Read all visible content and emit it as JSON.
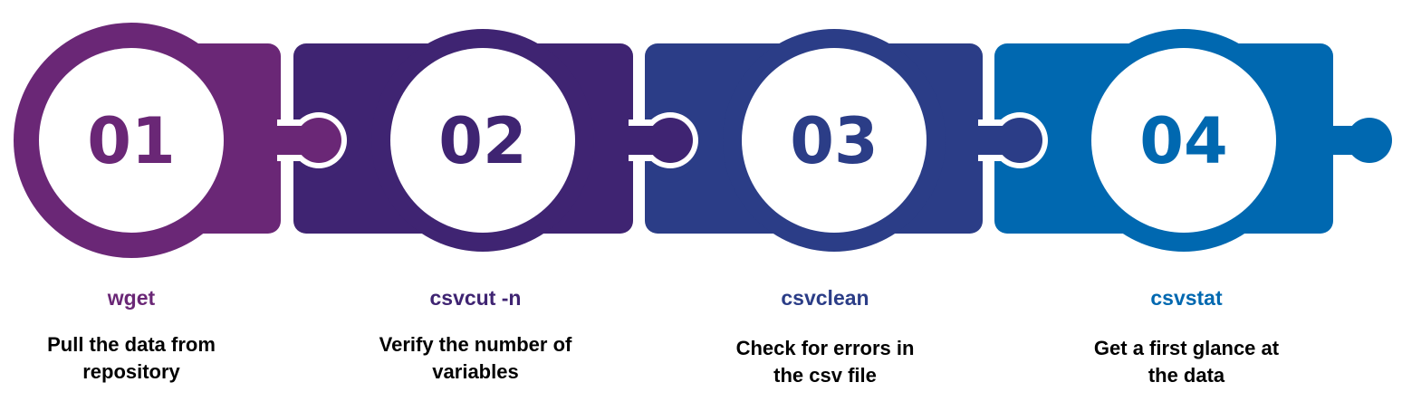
{
  "steps": [
    {
      "number": "01",
      "command": "wget",
      "description_line1": "Pull the data from",
      "description_line2": "repository",
      "color": "#6A2776"
    },
    {
      "number": "02",
      "command": "csvcut -n",
      "description_line1": "Verify the number of",
      "description_line2": "variables",
      "color": "#3F2472"
    },
    {
      "number": "03",
      "command": "csvclean",
      "description_line1": "Check for errors in",
      "description_line2": "the csv file",
      "color": "#2B3D87"
    },
    {
      "number": "04",
      "command": "csvstat",
      "description_line1": "Get a first glance at",
      "description_line2": "the data",
      "color": "#0068B0"
    }
  ]
}
